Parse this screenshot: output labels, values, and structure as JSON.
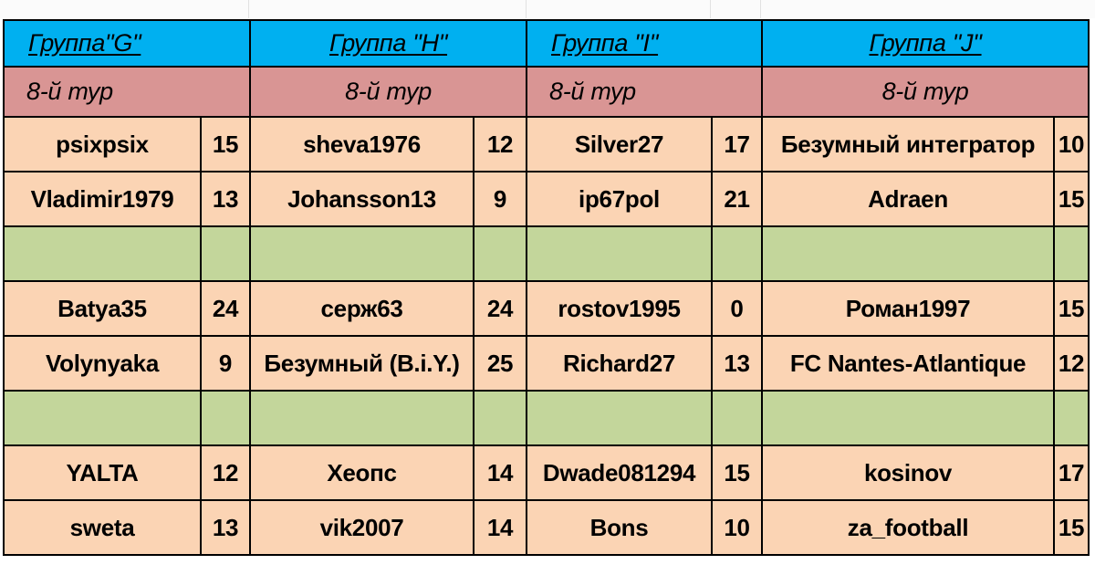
{
  "groups": [
    {
      "title": "Группа\"G\"",
      "round": "8-й тур"
    },
    {
      "title": "Группа \"H\"",
      "round": "8-й тур"
    },
    {
      "title": "Группа \"I\"",
      "round": "8-й тур"
    },
    {
      "title": "Группа \"J\"",
      "round": "8-й тур"
    }
  ],
  "rows": [
    [
      {
        "name": "psixpsix",
        "score": "15"
      },
      {
        "name": "sheva1976",
        "score": "12"
      },
      {
        "name": "Silver27",
        "score": "17"
      },
      {
        "name": "Безумный интегратор",
        "score": "10"
      }
    ],
    [
      {
        "name": "Vladimir1979",
        "score": "13"
      },
      {
        "name": "Johansson13",
        "score": "9"
      },
      {
        "name": "ip67pol",
        "score": "21"
      },
      {
        "name": "Adraen",
        "score": "15"
      }
    ],
    [
      {
        "name": "Batya35",
        "score": "24"
      },
      {
        "name": "серж63",
        "score": "24"
      },
      {
        "name": "rostov1995",
        "score": "0"
      },
      {
        "name": "Роман1997",
        "score": "15"
      }
    ],
    [
      {
        "name": "Volynyaka",
        "score": "9"
      },
      {
        "name": "Безумный (B.i.Y.)",
        "score": "25"
      },
      {
        "name": "Richard27",
        "score": "13"
      },
      {
        "name": "FC Nantes-Atlantique",
        "score": "12"
      }
    ],
    [
      {
        "name": "YALTA",
        "score": "12"
      },
      {
        "name": "Хеопс",
        "score": "14"
      },
      {
        "name": "Dwade081294",
        "score": "15"
      },
      {
        "name": "kosinov",
        "score": "17"
      }
    ],
    [
      {
        "name": "sweta",
        "score": "13"
      },
      {
        "name": "vik2007",
        "score": "14"
      },
      {
        "name": "Bons",
        "score": "10"
      },
      {
        "name": "za_football",
        "score": "15"
      }
    ]
  ]
}
